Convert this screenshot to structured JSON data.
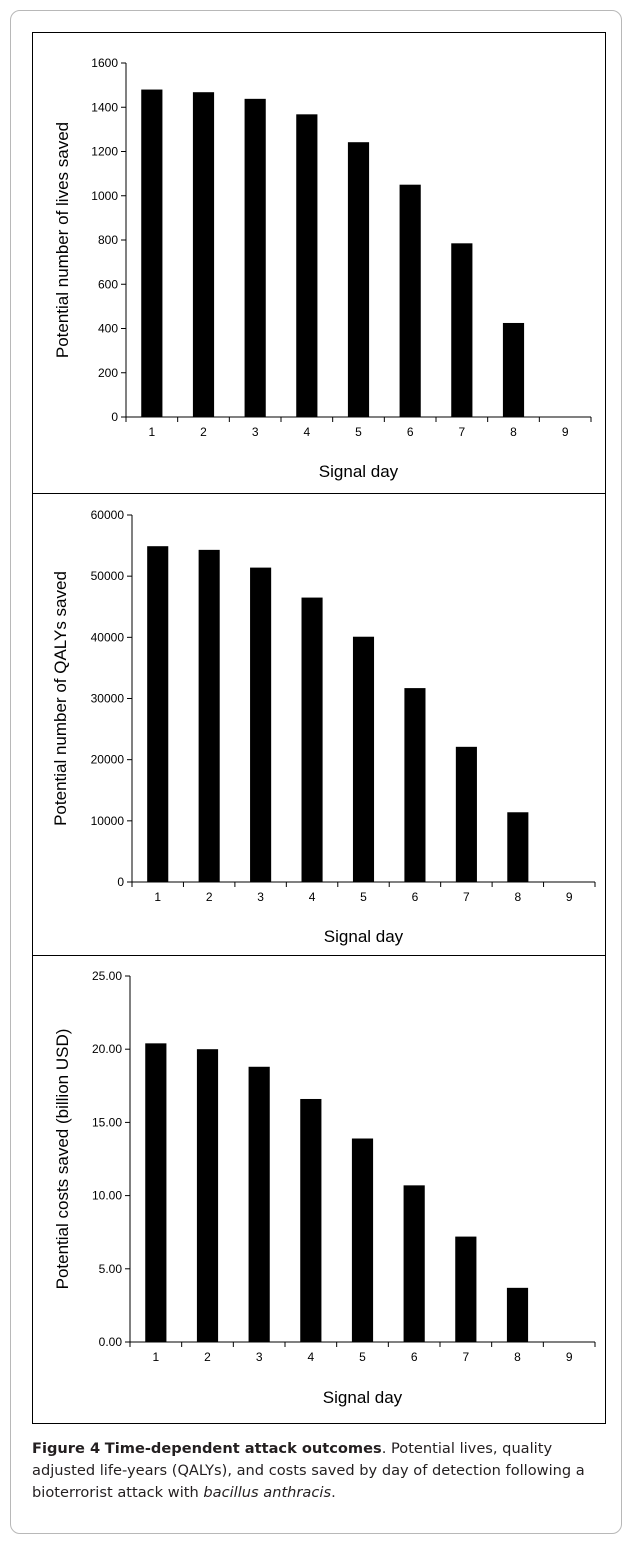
{
  "chart_data": [
    {
      "type": "bar",
      "categories": [
        "1",
        "2",
        "3",
        "4",
        "5",
        "6",
        "7",
        "8",
        "9"
      ],
      "values": [
        1480,
        1468,
        1438,
        1368,
        1242,
        1050,
        785,
        425,
        0
      ],
      "ylabel": "Potential number of lives saved",
      "xlabel": "Signal day",
      "ylim": [
        0,
        1600
      ],
      "yticks": [
        "0",
        "200",
        "400",
        "600",
        "800",
        "1000",
        "1200",
        "1400",
        "1600"
      ],
      "bar_color": "#000000",
      "grid": false,
      "legend": false
    },
    {
      "type": "bar",
      "categories": [
        "1",
        "2",
        "3",
        "4",
        "5",
        "6",
        "7",
        "8",
        "9"
      ],
      "values": [
        54900,
        54300,
        51400,
        46500,
        40100,
        31700,
        22100,
        11400,
        0
      ],
      "ylabel": "Potential number of QALYs saved",
      "xlabel": "Signal day",
      "ylim": [
        0,
        60000
      ],
      "yticks": [
        "0",
        "10000",
        "20000",
        "30000",
        "40000",
        "50000",
        "60000"
      ],
      "bar_color": "#000000",
      "grid": false,
      "legend": false
    },
    {
      "type": "bar",
      "categories": [
        "1",
        "2",
        "3",
        "4",
        "5",
        "6",
        "7",
        "8",
        "9"
      ],
      "values": [
        20.4,
        20.0,
        18.8,
        16.6,
        13.9,
        10.7,
        7.2,
        3.7,
        0
      ],
      "ylabel": "Potential costs saved (billion USD)",
      "xlabel": "Signal day",
      "ylim": [
        0,
        25
      ],
      "yticks": [
        "0.00",
        "5.00",
        "10.00",
        "15.00",
        "20.00",
        "25.00"
      ],
      "bar_color": "#000000",
      "grid": false,
      "legend": false
    }
  ],
  "caption": {
    "figure_label": "Figure 4",
    "title": "Time-dependent attack outcomes",
    "text_before_italic": ". Potential lives, quality adjusted life-years (QALYs), and costs saved by day of detection following a bioterrorist attack with ",
    "italic": "bacillus anthracis",
    "text_after_italic": "."
  }
}
